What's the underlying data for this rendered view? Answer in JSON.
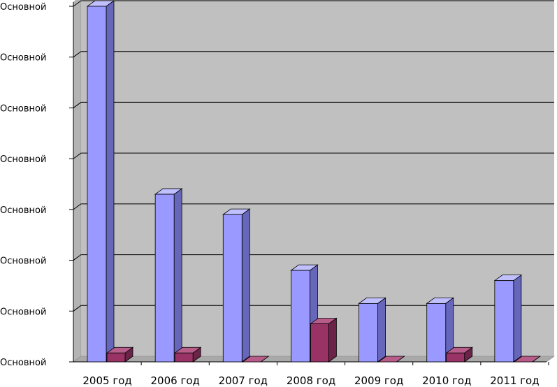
{
  "chart_data": {
    "type": "bar",
    "categories": [
      "2005 год",
      "2006 год",
      "2007 год",
      "2008 год",
      "2009 год",
      "2010 год",
      "2011 год"
    ],
    "series": [
      {
        "values": [
          14.0,
          6.6,
          5.8,
          3.6,
          2.3,
          2.3,
          3.2
        ]
      },
      {
        "values": [
          0.35,
          0.35,
          0.0,
          1.5,
          0.0,
          0.35,
          0.0
        ]
      }
    ],
    "ylim": [
      0,
      14
    ],
    "y_tick_labels": [
      "Основной",
      "Основной",
      "Основной",
      "Основной",
      "Основной",
      "Основной",
      "Основной",
      "Основной"
    ],
    "grid": true,
    "style": "3d-clustered-column",
    "colors": {
      "series1_front": "#9999ff",
      "series1_side": "#6666bb",
      "series1_top": "#c0c0ff",
      "series2_front": "#993366",
      "series2_side": "#6b2448",
      "series2_top": "#b85c8a",
      "plot_wall": "#c0c0c0",
      "plot_floor": "#a9a9a9",
      "gridline": "#000000"
    }
  }
}
